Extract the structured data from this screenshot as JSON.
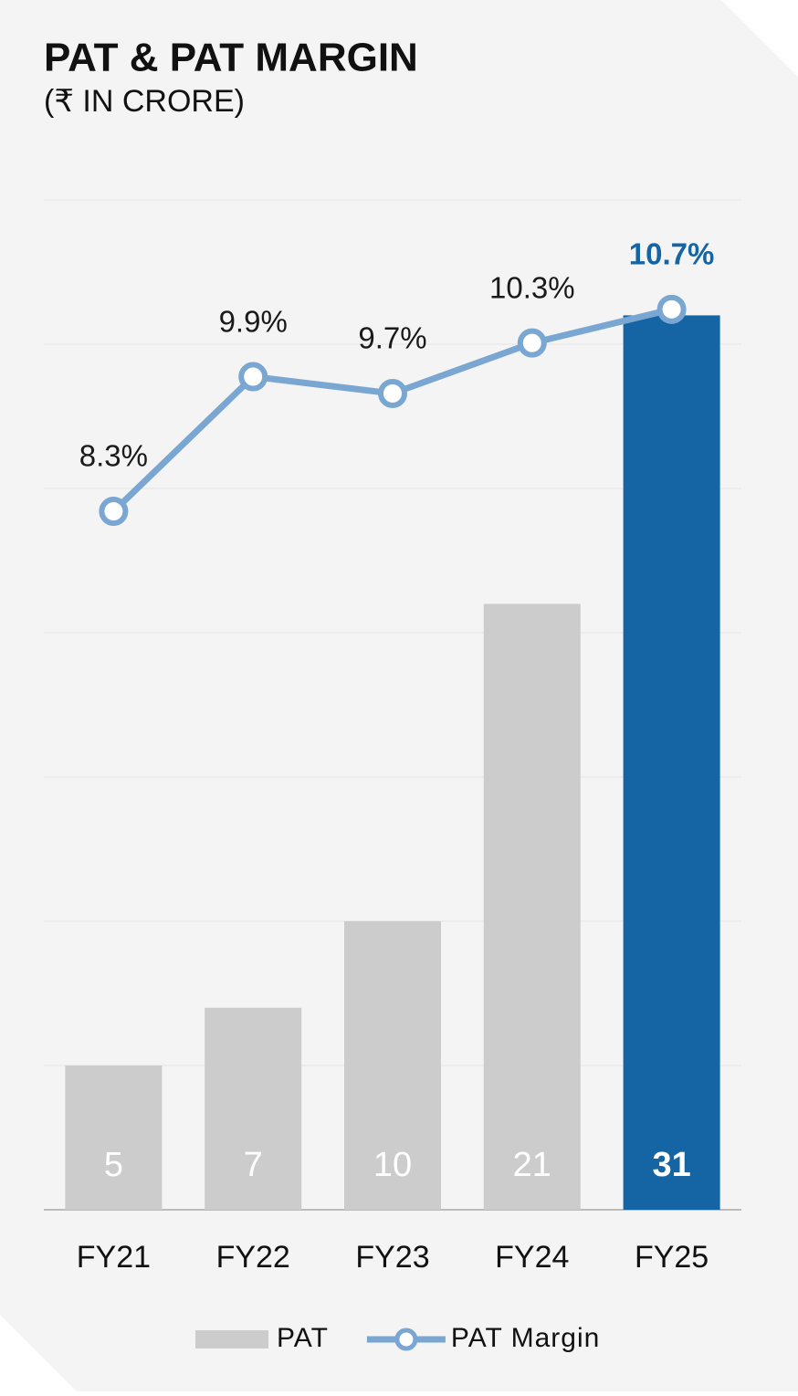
{
  "chart_data": {
    "type": "bar_line",
    "title": "PAT & PAT MARGIN",
    "subtitle": "(₹ IN CRORE)",
    "categories": [
      "FY21",
      "FY22",
      "FY23",
      "FY24",
      "FY25"
    ],
    "ylim": [
      0,
      35
    ],
    "yticks": [
      0,
      5,
      10,
      15,
      20,
      25,
      30,
      35
    ],
    "grid": true,
    "y2lim": [
      0,
      12
    ],
    "series": [
      {
        "name": "PAT",
        "type": "bar",
        "color": "#cccccc",
        "colors": [
          "#cccccc",
          "#cccccc",
          "#cccccc",
          "#cccccc",
          "#1565a5"
        ],
        "values": [
          5,
          7,
          10,
          21,
          31
        ]
      },
      {
        "name": "PAT Margin",
        "type": "line",
        "axis": "y2",
        "color": "#7aa6d2",
        "values": [
          8.3,
          9.9,
          9.7,
          10.3,
          10.7
        ],
        "value_labels": [
          "8.3%",
          "9.9%",
          "9.7%",
          "10.3%",
          "10.7%"
        ],
        "label_colors": [
          "#1a1a1a",
          "#1a1a1a",
          "#1a1a1a",
          "#1a1a1a",
          "#1565a5"
        ]
      }
    ]
  }
}
